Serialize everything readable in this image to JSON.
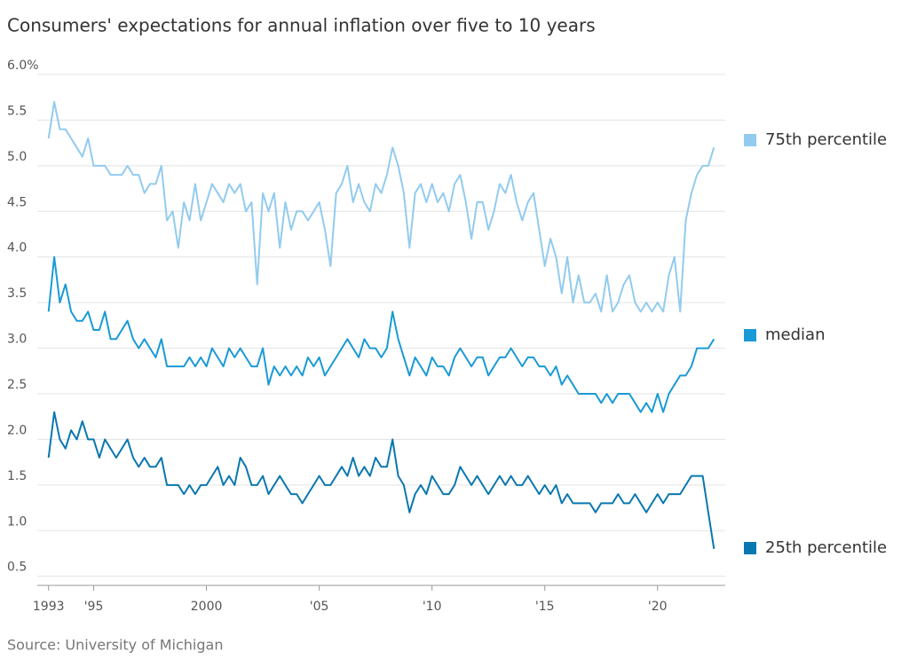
{
  "chart_data": {
    "type": "line",
    "title": "Consumers' expectations for annual inflation over five to 10 years",
    "source": "Source: University of Michigan",
    "xlim": [
      1992.5,
      2023
    ],
    "ylim": [
      0.4,
      6.0
    ],
    "xticks": [
      1993,
      {
        "value": 1995,
        "label": "'95"
      },
      2000,
      {
        "value": 2005,
        "label": "'05"
      },
      {
        "value": 2010,
        "label": "'10"
      },
      {
        "value": 2015,
        "label": "'15"
      },
      {
        "value": 2020,
        "label": "'20"
      }
    ],
    "yticks": [
      0.5,
      {
        "value": 1,
        "label": "1.0"
      },
      1.5,
      {
        "value": 2,
        "label": "2.0"
      },
      2.5,
      {
        "value": 3,
        "label": "3.0"
      },
      3.5,
      {
        "value": 4,
        "label": "4.0"
      },
      4.5,
      {
        "value": 5,
        "label": "5.0"
      },
      5.5,
      {
        "value": 6,
        "label": "6.0%"
      }
    ],
    "grid": true,
    "x": [
      1993,
      1993.25,
      1993.5,
      1993.75,
      1994,
      1994.25,
      1994.5,
      1994.75,
      1995,
      1995.25,
      1995.5,
      1995.75,
      1996,
      1996.25,
      1996.5,
      1996.75,
      1997,
      1997.25,
      1997.5,
      1997.75,
      1998,
      1998.25,
      1998.5,
      1998.75,
      1999,
      1999.25,
      1999.5,
      1999.75,
      2000,
      2000.25,
      2000.5,
      2000.75,
      2001,
      2001.25,
      2001.5,
      2001.75,
      2002,
      2002.25,
      2002.5,
      2002.75,
      2003,
      2003.25,
      2003.5,
      2003.75,
      2004,
      2004.25,
      2004.5,
      2004.75,
      2005,
      2005.25,
      2005.5,
      2005.75,
      2006,
      2006.25,
      2006.5,
      2006.75,
      2007,
      2007.25,
      2007.5,
      2007.75,
      2008,
      2008.25,
      2008.5,
      2008.75,
      2009,
      2009.25,
      2009.5,
      2009.75,
      2010,
      2010.25,
      2010.5,
      2010.75,
      2011,
      2011.25,
      2011.5,
      2011.75,
      2012,
      2012.25,
      2012.5,
      2012.75,
      2013,
      2013.25,
      2013.5,
      2013.75,
      2014,
      2014.25,
      2014.5,
      2014.75,
      2015,
      2015.25,
      2015.5,
      2015.75,
      2016,
      2016.25,
      2016.5,
      2016.75,
      2017,
      2017.25,
      2017.5,
      2017.75,
      2018,
      2018.25,
      2018.5,
      2018.75,
      2019,
      2019.25,
      2019.5,
      2019.75,
      2020,
      2020.25,
      2020.5,
      2020.75,
      2021,
      2021.25,
      2021.5,
      2021.75,
      2022,
      2022.25,
      2022.5
    ],
    "series": [
      {
        "name": "75th percentile",
        "color": "#92cbef",
        "values": [
          5.3,
          5.7,
          5.4,
          5.4,
          5.3,
          5.2,
          5.1,
          5.3,
          5.0,
          5.0,
          5.0,
          4.9,
          4.9,
          4.9,
          5.0,
          4.9,
          4.9,
          4.7,
          4.8,
          4.8,
          5.0,
          4.4,
          4.5,
          4.1,
          4.6,
          4.4,
          4.8,
          4.4,
          4.6,
          4.8,
          4.7,
          4.6,
          4.8,
          4.7,
          4.8,
          4.5,
          4.6,
          3.7,
          4.7,
          4.5,
          4.7,
          4.1,
          4.6,
          4.3,
          4.5,
          4.5,
          4.4,
          4.5,
          4.6,
          4.3,
          3.9,
          4.7,
          4.8,
          5.0,
          4.6,
          4.8,
          4.6,
          4.5,
          4.8,
          4.7,
          4.9,
          5.2,
          5.0,
          4.7,
          4.1,
          4.7,
          4.8,
          4.6,
          4.8,
          4.6,
          4.7,
          4.5,
          4.8,
          4.9,
          4.6,
          4.2,
          4.6,
          4.6,
          4.3,
          4.5,
          4.8,
          4.7,
          4.9,
          4.6,
          4.4,
          4.6,
          4.7,
          4.3,
          3.9,
          4.2,
          4.0,
          3.6,
          4.0,
          3.5,
          3.8,
          3.5,
          3.5,
          3.6,
          3.4,
          3.8,
          3.4,
          3.5,
          3.7,
          3.8,
          3.5,
          3.4,
          3.5,
          3.4,
          3.5,
          3.4,
          3.8,
          4.0,
          3.4,
          4.4,
          4.7,
          4.9,
          5.0,
          5.0,
          5.2
        ]
      },
      {
        "name": "median",
        "color": "#1a9ad6",
        "values": [
          3.4,
          4.0,
          3.5,
          3.7,
          3.4,
          3.3,
          3.3,
          3.4,
          3.2,
          3.2,
          3.4,
          3.1,
          3.1,
          3.2,
          3.3,
          3.1,
          3.0,
          3.1,
          3.0,
          2.9,
          3.1,
          2.8,
          2.8,
          2.8,
          2.8,
          2.9,
          2.8,
          2.9,
          2.8,
          3.0,
          2.9,
          2.8,
          3.0,
          2.9,
          3.0,
          2.9,
          2.8,
          2.8,
          3.0,
          2.6,
          2.8,
          2.7,
          2.8,
          2.7,
          2.8,
          2.7,
          2.9,
          2.8,
          2.9,
          2.7,
          2.8,
          2.9,
          3.0,
          3.1,
          3.0,
          2.9,
          3.1,
          3.0,
          3.0,
          2.9,
          3.0,
          3.4,
          3.1,
          2.9,
          2.7,
          2.9,
          2.8,
          2.7,
          2.9,
          2.8,
          2.8,
          2.7,
          2.9,
          3.0,
          2.9,
          2.8,
          2.9,
          2.9,
          2.7,
          2.8,
          2.9,
          2.9,
          3.0,
          2.9,
          2.8,
          2.9,
          2.9,
          2.8,
          2.8,
          2.7,
          2.8,
          2.6,
          2.7,
          2.6,
          2.5,
          2.5,
          2.5,
          2.5,
          2.4,
          2.5,
          2.4,
          2.5,
          2.5,
          2.5,
          2.4,
          2.3,
          2.4,
          2.3,
          2.5,
          2.3,
          2.5,
          2.6,
          2.7,
          2.7,
          2.8,
          3.0,
          3.0,
          3.0,
          3.1
        ]
      },
      {
        "name": "25th percentile",
        "color": "#0a77b0",
        "values": [
          1.8,
          2.3,
          2.0,
          1.9,
          2.1,
          2.0,
          2.2,
          2.0,
          2.0,
          1.8,
          2.0,
          1.9,
          1.8,
          1.9,
          2.0,
          1.8,
          1.7,
          1.8,
          1.7,
          1.7,
          1.8,
          1.5,
          1.5,
          1.5,
          1.4,
          1.5,
          1.4,
          1.5,
          1.5,
          1.6,
          1.7,
          1.5,
          1.6,
          1.5,
          1.8,
          1.7,
          1.5,
          1.5,
          1.6,
          1.4,
          1.5,
          1.6,
          1.5,
          1.4,
          1.4,
          1.3,
          1.4,
          1.5,
          1.6,
          1.5,
          1.5,
          1.6,
          1.7,
          1.6,
          1.8,
          1.6,
          1.7,
          1.6,
          1.8,
          1.7,
          1.7,
          2.0,
          1.6,
          1.5,
          1.2,
          1.4,
          1.5,
          1.4,
          1.6,
          1.5,
          1.4,
          1.4,
          1.5,
          1.7,
          1.6,
          1.5,
          1.6,
          1.5,
          1.4,
          1.5,
          1.6,
          1.5,
          1.6,
          1.5,
          1.5,
          1.6,
          1.5,
          1.4,
          1.5,
          1.4,
          1.5,
          1.3,
          1.4,
          1.3,
          1.3,
          1.3,
          1.3,
          1.2,
          1.3,
          1.3,
          1.3,
          1.4,
          1.3,
          1.3,
          1.4,
          1.3,
          1.2,
          1.3,
          1.4,
          1.3,
          1.4,
          1.4,
          1.4,
          1.5,
          1.6,
          1.6,
          1.6,
          1.2,
          0.8
        ]
      }
    ]
  }
}
